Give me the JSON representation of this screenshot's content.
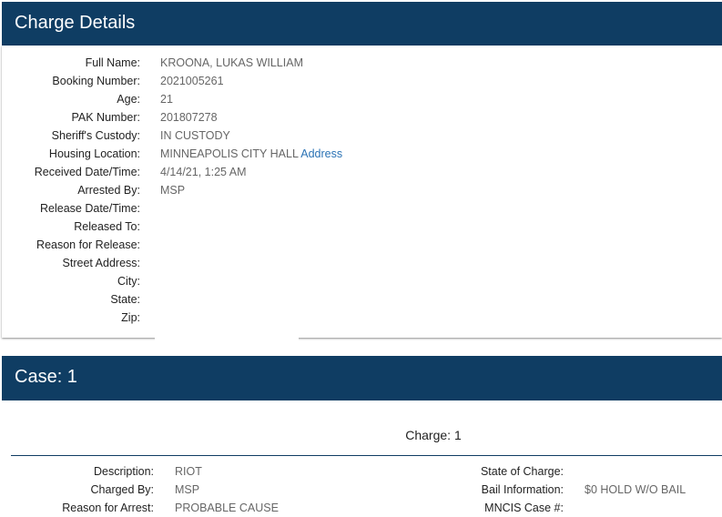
{
  "details": {
    "title": "Charge Details",
    "rows": [
      {
        "label": "Full Name:",
        "value": "KROONA, LUKAS WILLIAM"
      },
      {
        "label": "Booking Number:",
        "value": "2021005261"
      },
      {
        "label": "Age:",
        "value": "21"
      },
      {
        "label": "PAK Number:",
        "value": "201807278"
      },
      {
        "label": "Sheriff's Custody:",
        "value": "IN CUSTODY"
      },
      {
        "label": "Housing Location:",
        "value": "MINNEAPOLIS CITY HALL",
        "link": "Address"
      },
      {
        "label": "Received Date/Time:",
        "value": "4/14/21, 1:25 AM"
      },
      {
        "label": "Arrested By:",
        "value": "MSP"
      },
      {
        "label": "Release Date/Time:",
        "value": ""
      },
      {
        "label": "Released To:",
        "value": ""
      },
      {
        "label": "Reason for Release:",
        "value": ""
      },
      {
        "label": "Street Address:",
        "value": ""
      },
      {
        "label": "City:",
        "value": ""
      },
      {
        "label": "State:",
        "value": ""
      },
      {
        "label": "Zip:",
        "value": ""
      }
    ]
  },
  "case": {
    "title": "Case: 1",
    "charge_title": "Charge: 1",
    "left": [
      {
        "label": "Description:",
        "value": "RIOT"
      },
      {
        "label": "Charged By:",
        "value": "MSP"
      },
      {
        "label": "Reason for Arrest:",
        "value": "PROBABLE CAUSE"
      }
    ],
    "right": [
      {
        "label": "State of Charge:",
        "value": ""
      },
      {
        "label": "Bail Information:",
        "value": "$0 HOLD W/O BAIL"
      },
      {
        "label": "MNCIS Case #:",
        "value": ""
      }
    ]
  }
}
